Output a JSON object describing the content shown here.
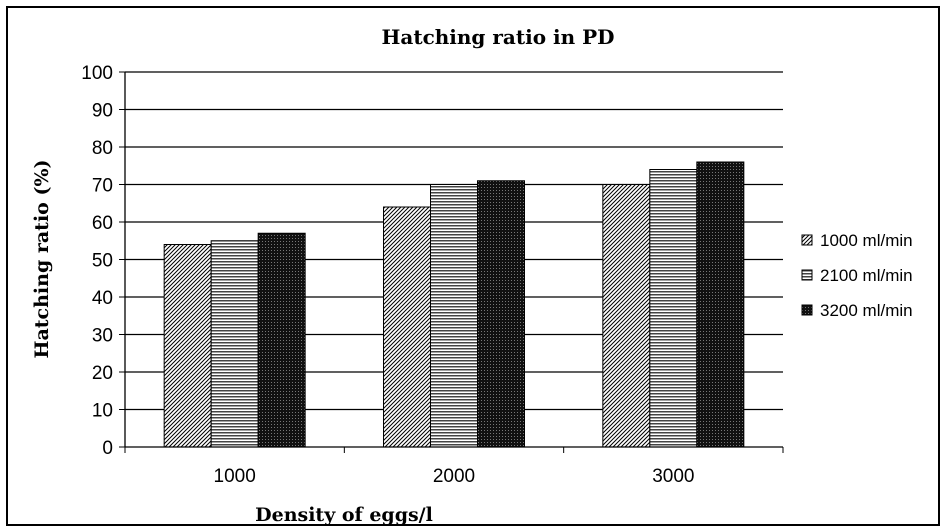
{
  "chart_data": {
    "type": "bar",
    "title": "Hatching ratio in PD",
    "xlabel": "Density of eggs/l",
    "ylabel": "Hatching ratio (%)",
    "categories": [
      "1000",
      "2000",
      "3000"
    ],
    "ylim": [
      0,
      100
    ],
    "yticks": [
      0,
      10,
      20,
      30,
      40,
      50,
      60,
      70,
      80,
      90,
      100
    ],
    "grid": true,
    "legend_position": "right",
    "series": [
      {
        "name": "1000 ml/min",
        "values": [
          54,
          64,
          70
        ],
        "pattern": "diagonal-hatch",
        "color": "#ffffff"
      },
      {
        "name": "2100 ml/min",
        "values": [
          55,
          70,
          74
        ],
        "pattern": "horizontal-lines",
        "color": "#888888"
      },
      {
        "name": "3200 ml/min",
        "values": [
          57,
          71,
          76
        ],
        "pattern": "dark-dotted",
        "color": "#1a1a1a"
      }
    ]
  }
}
